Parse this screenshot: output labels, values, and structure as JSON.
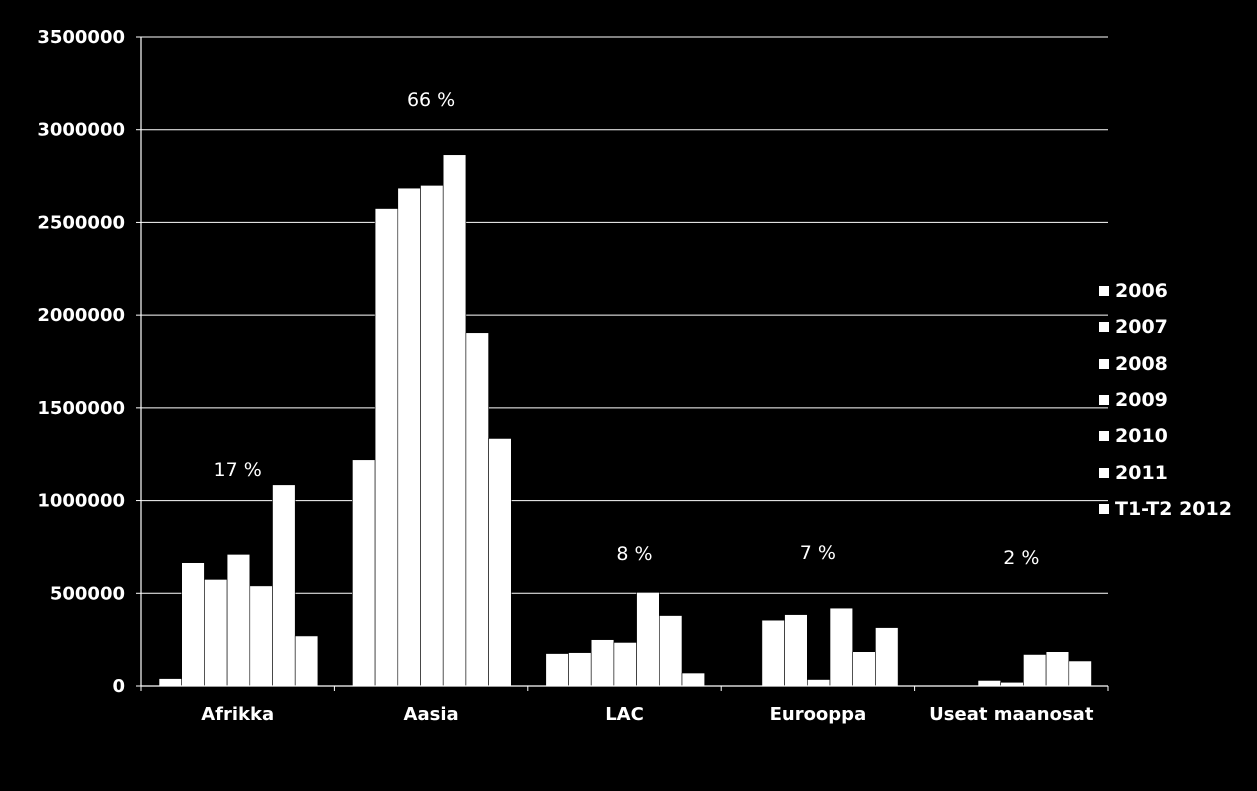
{
  "chart_data": {
    "type": "bar",
    "title": "",
    "xlabel": "",
    "ylabel": "",
    "ylim": [
      0,
      3500000
    ],
    "y_ticks": [
      "0",
      "500000",
      "1000000",
      "1500000",
      "2000000",
      "2500000",
      "3000000",
      "3500000"
    ],
    "grid": true,
    "legend_position": "right",
    "categories": [
      "Afrikka",
      "Aasia",
      "LAC",
      "Eurooppa",
      "Useat maanosat"
    ],
    "series": [
      {
        "name": "2006",
        "values": [
          40000,
          1220000,
          175000,
          0,
          0
        ]
      },
      {
        "name": "2007",
        "values": [
          665000,
          2575000,
          180000,
          355000,
          0
        ]
      },
      {
        "name": "2008",
        "values": [
          575000,
          2685000,
          250000,
          385000,
          30000
        ]
      },
      {
        "name": "2009",
        "values": [
          710000,
          2700000,
          235000,
          35000,
          20000
        ]
      },
      {
        "name": "2010",
        "values": [
          540000,
          2865000,
          505000,
          420000,
          170000
        ]
      },
      {
        "name": "2011",
        "values": [
          1085000,
          1905000,
          380000,
          185000,
          185000
        ]
      },
      {
        "name": "T1-T2 2012",
        "values": [
          270000,
          1335000,
          70000,
          315000,
          135000
        ]
      }
    ],
    "annotations": [
      "17 %",
      "66 %",
      "8 %",
      "7 %",
      "2 %"
    ],
    "colors": {
      "background": "#000000",
      "bars": "#ffffff",
      "text": "#ffffff",
      "grid": "#ffffff"
    }
  }
}
